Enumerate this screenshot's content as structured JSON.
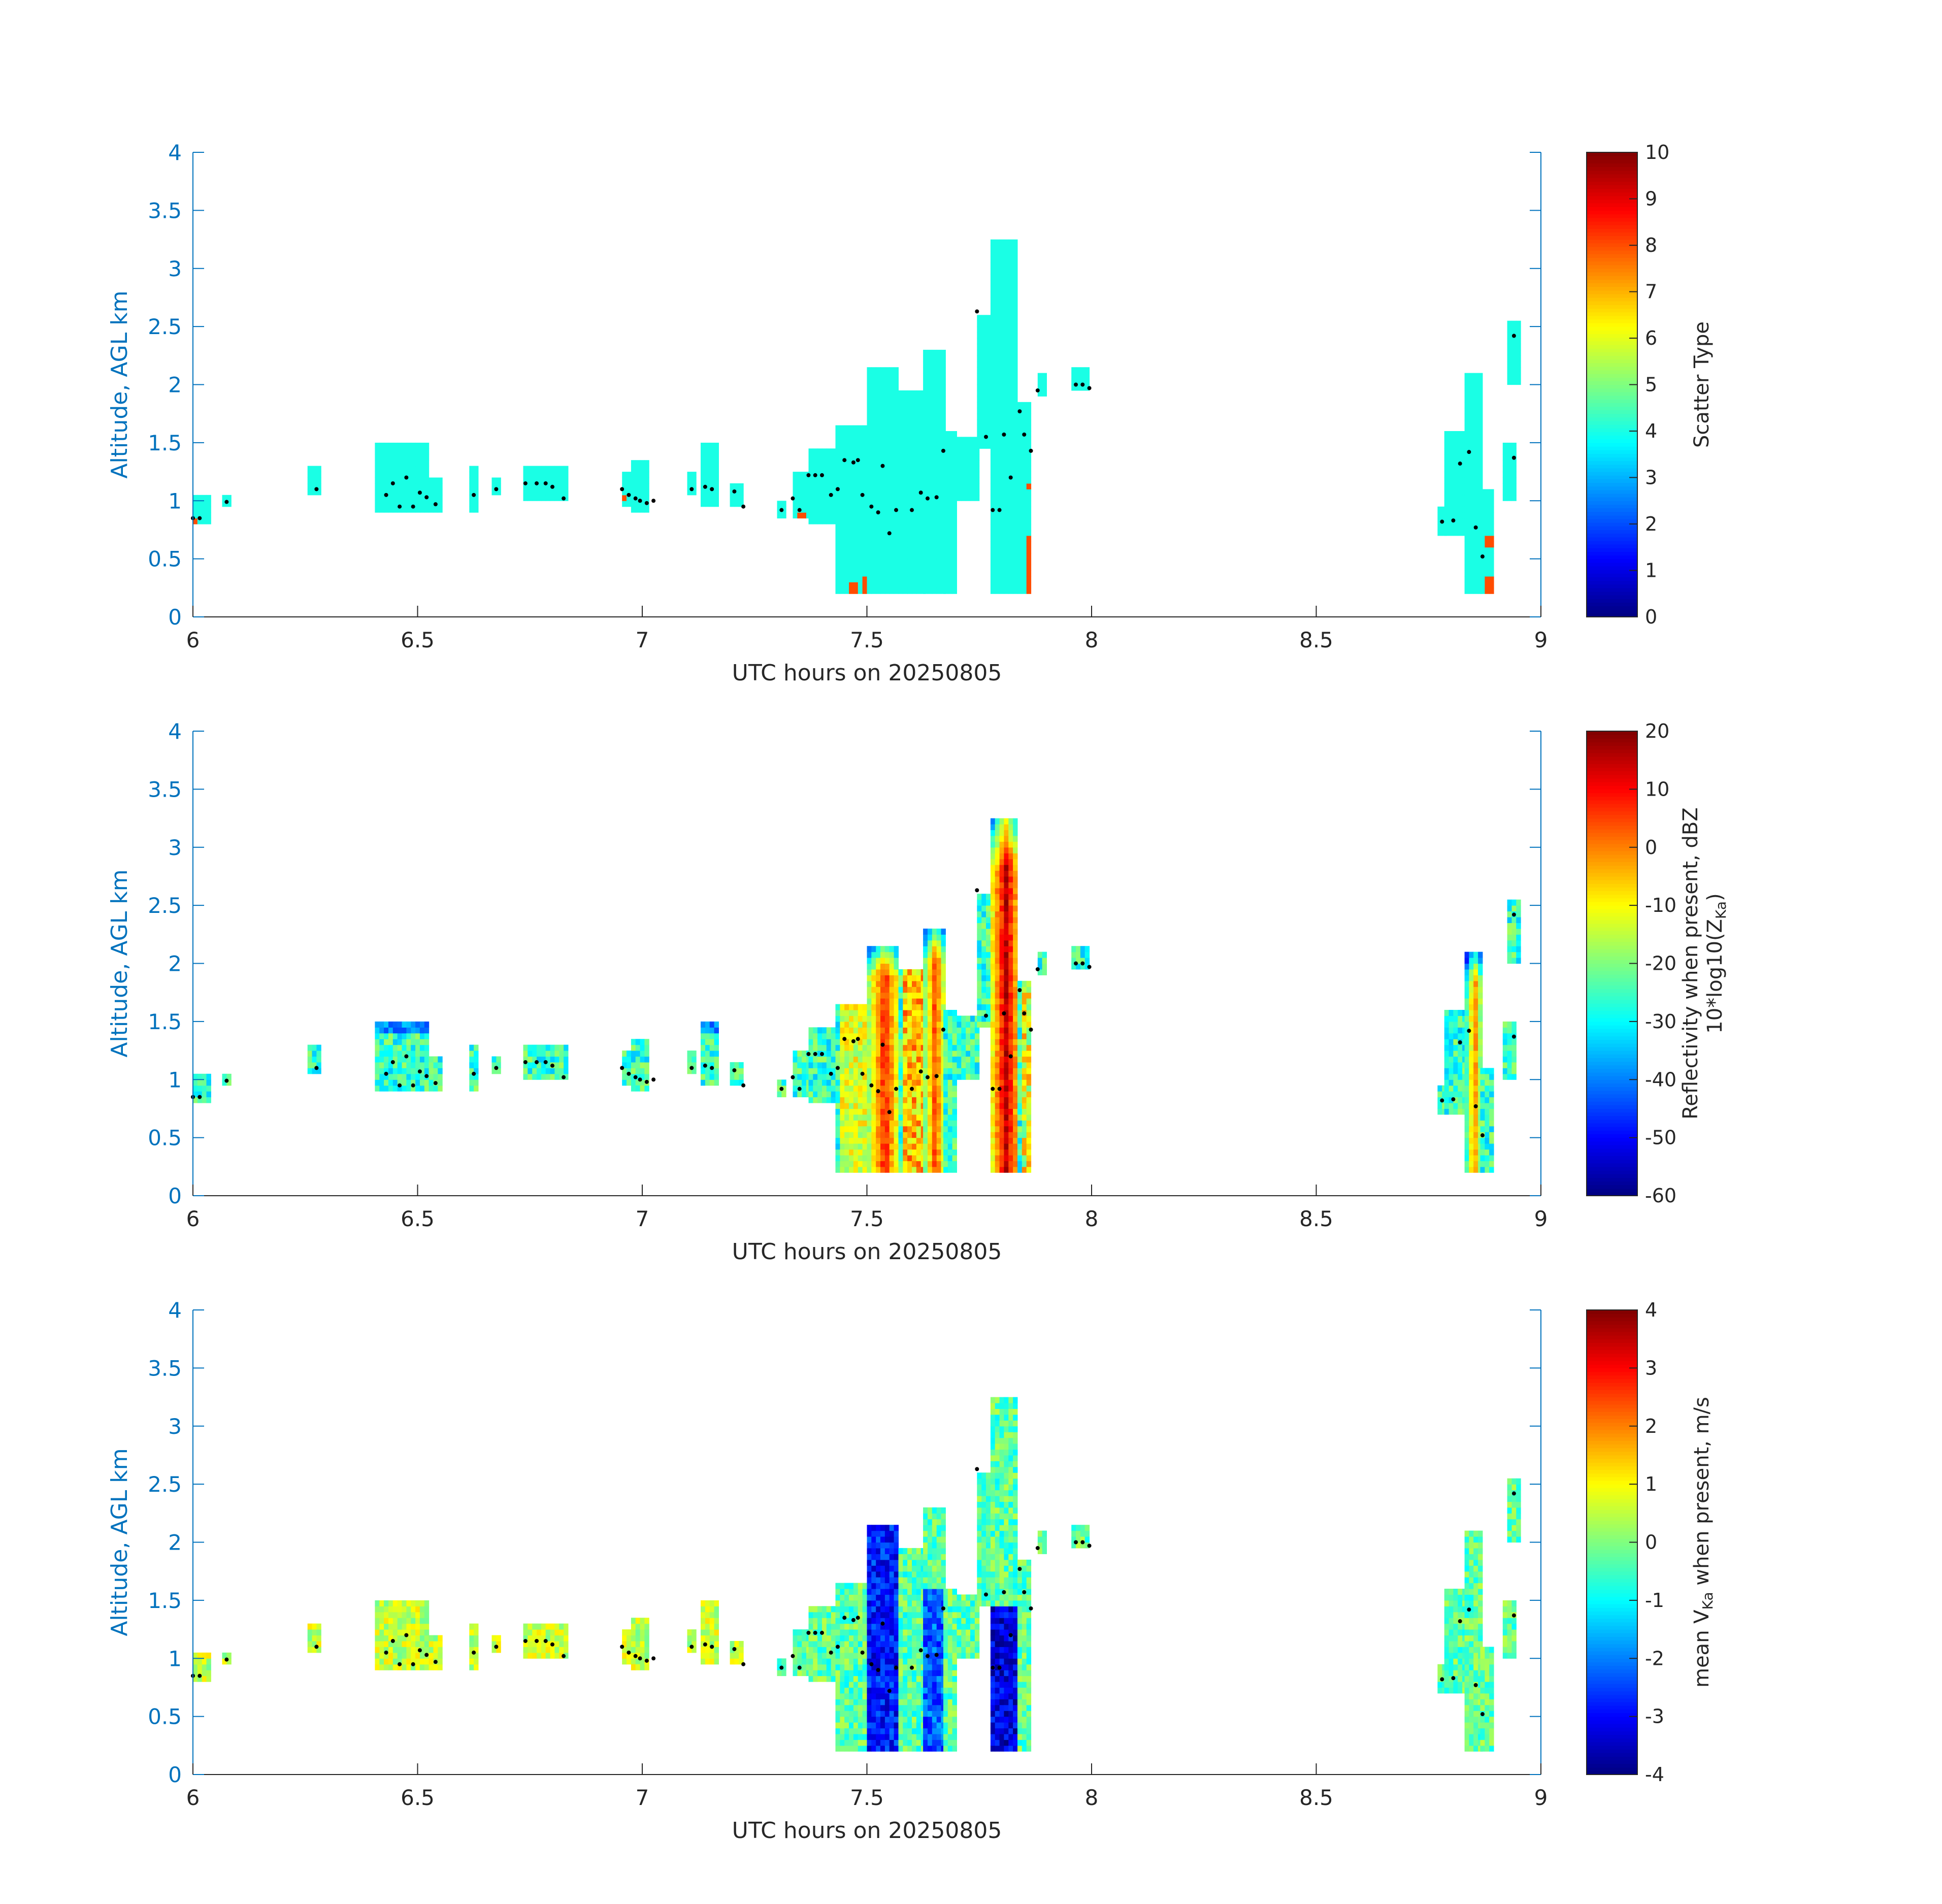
{
  "chart_data": [
    {
      "type": "heatmap",
      "xlabel": "UTC hours on 20250805",
      "ylabel": "Altitude, AGL km",
      "xlim": [
        6,
        9
      ],
      "ylim": [
        0,
        4
      ],
      "x_ticks": [
        "6",
        "6.5",
        "7",
        "7.5",
        "8",
        "8.5",
        "9"
      ],
      "y_ticks": [
        "0",
        "0.5",
        "1",
        "1.5",
        "2",
        "2.5",
        "3",
        "3.5",
        "4"
      ],
      "colorbar": {
        "label_lines": [
          "Scatter Type"
        ],
        "range": [
          0,
          10
        ],
        "ticks": [
          "0",
          "1",
          "2",
          "3",
          "4",
          "5",
          "6",
          "7",
          "8",
          "9",
          "10"
        ],
        "colormap": "jet"
      },
      "mode": "scatter",
      "regions": [
        {
          "x": [
            6.0,
            6.035
          ],
          "y": [
            0.8,
            1.05
          ]
        },
        {
          "x": [
            6.065,
            6.085
          ],
          "y": [
            0.95,
            1.05
          ]
        },
        {
          "x": [
            6.255,
            6.285
          ],
          "y": [
            1.05,
            1.3
          ]
        },
        {
          "x": [
            6.405,
            6.52
          ],
          "y": [
            0.9,
            1.5
          ]
        },
        {
          "x": [
            6.505,
            6.55
          ],
          "y": [
            0.9,
            1.2
          ]
        },
        {
          "x": [
            6.615,
            6.635
          ],
          "y": [
            0.9,
            1.3
          ]
        },
        {
          "x": [
            6.665,
            6.685
          ],
          "y": [
            1.05,
            1.2
          ]
        },
        {
          "x": [
            6.735,
            6.835
          ],
          "y": [
            1.0,
            1.3
          ]
        },
        {
          "x": [
            6.955,
            7.0
          ],
          "y": [
            0.95,
            1.25
          ]
        },
        {
          "x": [
            6.975,
            7.015
          ],
          "y": [
            0.9,
            1.35
          ]
        },
        {
          "x": [
            7.1,
            7.115
          ],
          "y": [
            1.05,
            1.25
          ]
        },
        {
          "x": [
            7.13,
            7.165
          ],
          "y": [
            0.95,
            1.5
          ]
        },
        {
          "x": [
            7.195,
            7.225
          ],
          "y": [
            0.95,
            1.15
          ]
        },
        {
          "x": [
            7.3,
            7.32
          ],
          "y": [
            0.85,
            1.0
          ]
        },
        {
          "x": [
            7.335,
            7.37
          ],
          "y": [
            0.85,
            1.25
          ]
        },
        {
          "x": [
            7.37,
            7.43
          ],
          "y": [
            0.8,
            1.45
          ]
        },
        {
          "x": [
            7.43,
            7.5
          ],
          "y": [
            0.2,
            1.65
          ]
        },
        {
          "x": [
            7.5,
            7.57
          ],
          "y": [
            0.2,
            2.15
          ]
        },
        {
          "x": [
            7.57,
            7.625
          ],
          "y": [
            0.2,
            1.95
          ]
        },
        {
          "x": [
            7.625,
            7.67
          ],
          "y": [
            0.2,
            2.3
          ]
        },
        {
          "x": [
            7.67,
            7.7
          ],
          "y": [
            0.2,
            1.6
          ]
        },
        {
          "x": [
            7.7,
            7.745
          ],
          "y": [
            1.0,
            1.55
          ]
        },
        {
          "x": [
            7.745,
            7.775
          ],
          "y": [
            1.45,
            2.6
          ]
        },
        {
          "x": [
            7.775,
            7.835
          ],
          "y": [
            0.2,
            3.25
          ]
        },
        {
          "x": [
            7.835,
            7.865
          ],
          "y": [
            0.2,
            1.85
          ]
        },
        {
          "x": [
            7.88,
            7.895
          ],
          "y": [
            1.9,
            2.1
          ]
        },
        {
          "x": [
            7.955,
            7.995
          ],
          "y": [
            1.95,
            2.15
          ]
        },
        {
          "x": [
            8.77,
            8.785
          ],
          "y": [
            0.7,
            0.95
          ]
        },
        {
          "x": [
            8.785,
            8.83
          ],
          "y": [
            0.7,
            1.6
          ]
        },
        {
          "x": [
            8.83,
            8.865
          ],
          "y": [
            0.2,
            2.1
          ]
        },
        {
          "x": [
            8.865,
            8.895
          ],
          "y": [
            0.2,
            1.1
          ]
        },
        {
          "x": [
            8.915,
            8.945
          ],
          "y": [
            1.0,
            1.5
          ]
        },
        {
          "x": [
            8.925,
            8.955
          ],
          "y": [
            2.0,
            2.55
          ]
        }
      ],
      "accent_regions": [
        {
          "x": [
            6.0,
            6.01
          ],
          "y": [
            0.8,
            0.85
          ],
          "value": 8
        },
        {
          "x": [
            6.425,
            6.435
          ],
          "y": [
            0.85,
            0.9
          ],
          "value": 8
        },
        {
          "x": [
            6.955,
            6.965
          ],
          "y": [
            1.0,
            1.05
          ],
          "value": 8
        },
        {
          "x": [
            7.345,
            7.36
          ],
          "y": [
            0.8,
            0.9
          ],
          "value": 8
        },
        {
          "x": [
            7.455,
            7.48
          ],
          "y": [
            0.2,
            0.3
          ],
          "value": 8
        },
        {
          "x": [
            7.485,
            7.5
          ],
          "y": [
            0.2,
            0.35
          ],
          "value": 8
        },
        {
          "x": [
            7.855,
            7.865
          ],
          "y": [
            0.2,
            0.7
          ],
          "value": 8
        },
        {
          "x": [
            7.855,
            7.865
          ],
          "y": [
            1.1,
            1.15
          ],
          "value": 8
        },
        {
          "x": [
            8.875,
            8.89
          ],
          "y": [
            0.6,
            0.7
          ],
          "value": 8
        },
        {
          "x": [
            8.875,
            8.89
          ],
          "y": [
            0.2,
            0.35
          ],
          "value": 8
        }
      ],
      "base_value": 4,
      "black_dots": [
        [
          6.0,
          0.85
        ],
        [
          6.015,
          0.85
        ],
        [
          6.075,
          0.99
        ],
        [
          6.275,
          1.1
        ],
        [
          6.43,
          1.05
        ],
        [
          6.445,
          1.15
        ],
        [
          6.46,
          0.95
        ],
        [
          6.475,
          1.2
        ],
        [
          6.49,
          0.95
        ],
        [
          6.505,
          1.07
        ],
        [
          6.52,
          1.03
        ],
        [
          6.54,
          0.97
        ],
        [
          6.625,
          1.05
        ],
        [
          6.675,
          1.1
        ],
        [
          6.74,
          1.15
        ],
        [
          6.765,
          1.15
        ],
        [
          6.785,
          1.15
        ],
        [
          6.8,
          1.12
        ],
        [
          6.825,
          1.02
        ],
        [
          6.955,
          1.1
        ],
        [
          6.97,
          1.05
        ],
        [
          6.985,
          1.02
        ],
        [
          6.995,
          1.0
        ],
        [
          7.01,
          0.98
        ],
        [
          7.025,
          1.0
        ],
        [
          7.11,
          1.1
        ],
        [
          7.14,
          1.12
        ],
        [
          7.155,
          1.1
        ],
        [
          7.205,
          1.08
        ],
        [
          7.225,
          0.95
        ],
        [
          7.31,
          0.92
        ],
        [
          7.335,
          1.02
        ],
        [
          7.35,
          0.92
        ],
        [
          7.37,
          1.22
        ],
        [
          7.385,
          1.22
        ],
        [
          7.4,
          1.22
        ],
        [
          7.42,
          1.05
        ],
        [
          7.435,
          1.1
        ],
        [
          7.45,
          1.35
        ],
        [
          7.47,
          1.33
        ],
        [
          7.48,
          1.35
        ],
        [
          7.49,
          1.05
        ],
        [
          7.51,
          0.95
        ],
        [
          7.525,
          0.9
        ],
        [
          7.535,
          1.3
        ],
        [
          7.55,
          0.72
        ],
        [
          7.565,
          0.92
        ],
        [
          7.6,
          0.92
        ],
        [
          7.62,
          1.07
        ],
        [
          7.635,
          1.02
        ],
        [
          7.655,
          1.03
        ],
        [
          7.67,
          1.43
        ],
        [
          7.745,
          2.63
        ],
        [
          7.765,
          1.55
        ],
        [
          7.78,
          0.92
        ],
        [
          7.795,
          0.92
        ],
        [
          7.805,
          1.57
        ],
        [
          7.82,
          1.2
        ],
        [
          7.84,
          1.77
        ],
        [
          7.85,
          1.57
        ],
        [
          7.865,
          1.43
        ],
        [
          7.88,
          1.95
        ],
        [
          7.965,
          2.0
        ],
        [
          7.98,
          2.0
        ],
        [
          7.995,
          1.97
        ],
        [
          8.78,
          0.82
        ],
        [
          8.805,
          0.83
        ],
        [
          8.82,
          1.32
        ],
        [
          8.84,
          1.42
        ],
        [
          8.855,
          0.77
        ],
        [
          8.87,
          0.52
        ],
        [
          8.94,
          1.37
        ],
        [
          8.94,
          2.42
        ]
      ]
    },
    {
      "type": "heatmap",
      "xlabel": "UTC hours on 20250805",
      "ylabel": "Altitude, AGL km",
      "xlim": [
        6,
        9
      ],
      "ylim": [
        0,
        4
      ],
      "x_ticks": [
        "6",
        "6.5",
        "7",
        "7.5",
        "8",
        "8.5",
        "9"
      ],
      "y_ticks": [
        "0",
        "0.5",
        "1",
        "1.5",
        "2",
        "2.5",
        "3",
        "3.5",
        "4"
      ],
      "colorbar": {
        "label_lines": [
          "Reflectivity when present, dBZ",
          "10*log10(Z",
          "Ka",
          ")"
        ],
        "range": [
          -60,
          20
        ],
        "ticks": [
          "-60",
          "-50",
          "-40",
          "-30",
          "-20",
          "-10",
          "0",
          "10",
          "20"
        ],
        "colormap": "jet"
      },
      "mode": "reflectivity",
      "cores": [
        {
          "x": [
            7.5,
            7.57
          ],
          "y": [
            0.2,
            2.15
          ],
          "peak": 8
        },
        {
          "x": [
            7.625,
            7.67
          ],
          "y": [
            0.2,
            2.3
          ],
          "peak": 6
        },
        {
          "x": [
            7.775,
            7.835
          ],
          "y": [
            0.2,
            3.25
          ],
          "peak": 15
        },
        {
          "x": [
            8.83,
            8.865
          ],
          "y": [
            0.2,
            2.1
          ],
          "peak": 0
        }
      ]
    },
    {
      "type": "heatmap",
      "xlabel": "UTC hours on 20250805",
      "ylabel": "Altitude, AGL km",
      "xlim": [
        6,
        9
      ],
      "ylim": [
        0,
        4
      ],
      "x_ticks": [
        "6",
        "6.5",
        "7",
        "7.5",
        "8",
        "8.5",
        "9"
      ],
      "y_ticks": [
        "0",
        "0.5",
        "1",
        "1.5",
        "2",
        "2.5",
        "3",
        "3.5",
        "4"
      ],
      "colorbar": {
        "label_lines": [
          "mean V",
          "Ka",
          " when present, m/s"
        ],
        "range": [
          -4,
          4
        ],
        "ticks": [
          "-4",
          "-3",
          "-2",
          "-1",
          "0",
          "1",
          "2",
          "3",
          "4"
        ],
        "colormap": "jet"
      },
      "mode": "velocity",
      "downdrafts": [
        {
          "x": [
            7.5,
            7.57
          ],
          "y": [
            0.2,
            2.15
          ],
          "min": -3.6
        },
        {
          "x": [
            7.625,
            7.67
          ],
          "y": [
            0.2,
            1.6
          ],
          "min": -3.0
        },
        {
          "x": [
            7.775,
            7.835
          ],
          "y": [
            0.2,
            1.45
          ],
          "min": -4.0
        }
      ]
    }
  ]
}
